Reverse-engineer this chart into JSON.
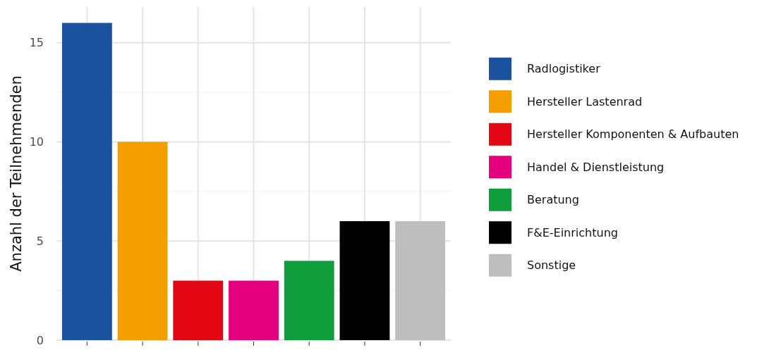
{
  "chart_data": {
    "type": "bar",
    "ylabel": "Anzahl der Teilnehmenden",
    "categories": [
      null,
      null,
      null,
      null,
      null,
      null,
      null
    ],
    "series": [
      {
        "name": "Radlogistiker",
        "color": "#1a52a0",
        "values": [
          16,
          null,
          null,
          null,
          null,
          null,
          null
        ]
      },
      {
        "name": "Hersteller Lastenrad",
        "color": "#f59e00",
        "values": [
          null,
          10,
          null,
          null,
          null,
          null,
          null
        ]
      },
      {
        "name": "Hersteller Komponenten & Aufbauten",
        "color": "#e30613",
        "values": [
          null,
          null,
          3,
          null,
          null,
          null,
          null
        ]
      },
      {
        "name": "Handel & Dienstleistung",
        "color": "#e5007d",
        "values": [
          null,
          null,
          null,
          3,
          null,
          null,
          null
        ]
      },
      {
        "name": "Beratung",
        "color": "#0f9e3b",
        "values": [
          null,
          null,
          null,
          null,
          4,
          null,
          null
        ]
      },
      {
        "name": "F&E-Einrichtung",
        "color": "#000000",
        "values": [
          null,
          null,
          null,
          null,
          null,
          6,
          null
        ]
      },
      {
        "name": "Sonstige",
        "color": "#bebebe",
        "values": [
          null,
          null,
          null,
          null,
          null,
          null,
          6
        ]
      }
    ],
    "ylim": [
      0,
      16.8
    ],
    "yticks": [
      0,
      {
        "value": 2.5,
        "label": null
      },
      5,
      {
        "value": 7.5,
        "label": null
      },
      10,
      {
        "value": 12.5,
        "label": null
      },
      15
    ],
    "grid": true,
    "legend": "right"
  }
}
